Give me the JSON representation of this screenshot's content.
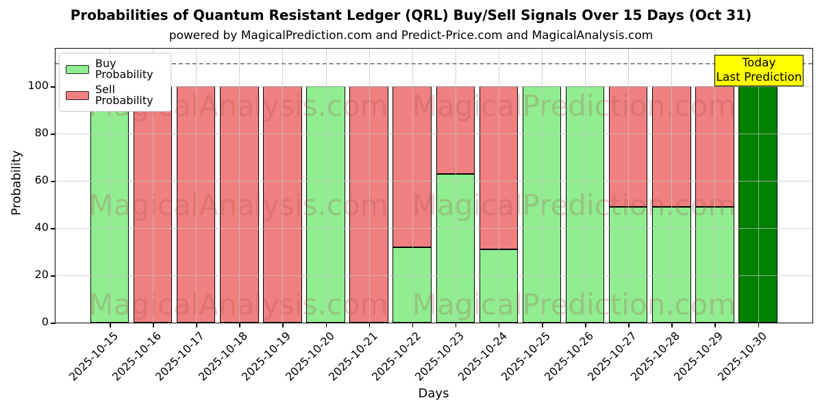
{
  "chart_data": {
    "type": "bar",
    "stacked": true,
    "title": "Probabilities of Quantum Resistant Ledger (QRL) Buy/Sell Signals Over 15 Days (Oct 31)",
    "subtitle": "powered by MagicalPrediction.com and Predict-Price.com and MagicalAnalysis.com",
    "xlabel": "Days",
    "ylabel": "Probability",
    "categories": [
      "2025-10-15",
      "2025-10-16",
      "2025-10-17",
      "2025-10-18",
      "2025-10-19",
      "2025-10-20",
      "2025-10-21",
      "2025-10-22",
      "2025-10-23",
      "2025-10-24",
      "2025-10-25",
      "2025-10-26",
      "2025-10-27",
      "2025-10-28",
      "2025-10-29",
      "2025-10-30"
    ],
    "series": [
      {
        "name": "Buy Probability",
        "color": "#90ee90",
        "values": [
          100,
          0,
          0,
          0,
          0,
          100,
          0,
          32,
          63,
          31,
          100,
          100,
          49,
          49,
          49,
          100
        ]
      },
      {
        "name": "Sell Probability",
        "color": "#f08080",
        "values": [
          0,
          100,
          100,
          100,
          100,
          0,
          100,
          68,
          37,
          69,
          0,
          0,
          51,
          51,
          51,
          0
        ]
      }
    ],
    "today_index": 15,
    "today_color": "#008000",
    "ylim": [
      0,
      116
    ],
    "yticks": [
      0,
      20,
      40,
      60,
      80,
      100
    ],
    "dashed_line_y": 110,
    "grid": true,
    "legend_position": "upper left",
    "bar_edge_color": "#000000"
  },
  "annotation": {
    "line1": "Today",
    "line2": "Last Prediction",
    "bg_color": "#ffff00"
  },
  "watermarks": {
    "texts": [
      "MagicalAnalysis.com",
      "MagicalPrediction.com"
    ],
    "color": "rgba(165,75,75,0.25)"
  }
}
